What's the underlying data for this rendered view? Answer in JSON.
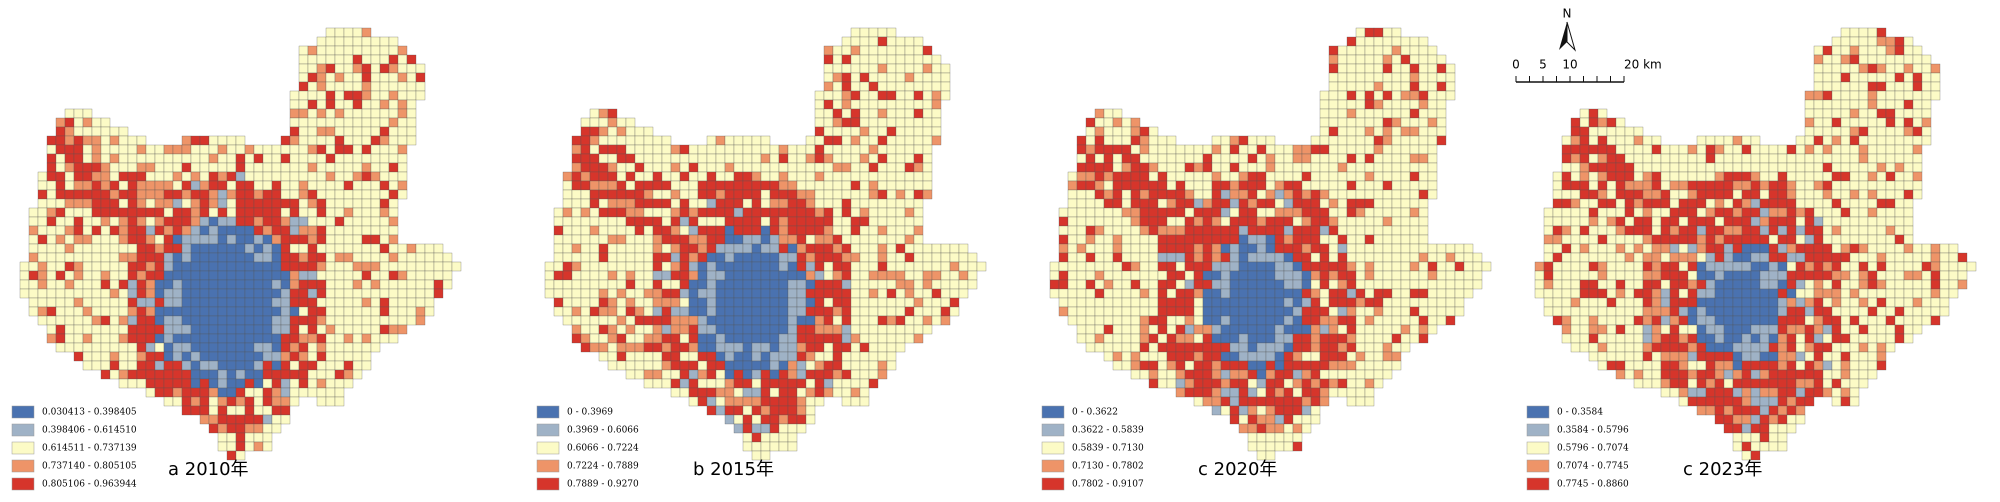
{
  "panels": [
    {
      "caption": "a 2010年",
      "legend": [
        {
          "label": "0.030413 - 0.398405",
          "color": "#4a72b0"
        },
        {
          "label": "0.398406 - 0.614510",
          "color": "#9fb2c6"
        },
        {
          "label": "0.614511 - 0.737139",
          "color": "#fcfbc6"
        },
        {
          "label": "0.737140 - 0.805105",
          "color": "#ee9468"
        },
        {
          "label": "0.805106 - 0.963944",
          "color": "#d6352b"
        }
      ]
    },
    {
      "caption": "b 2015年",
      "legend": [
        {
          "label": "0 - 0.3969",
          "color": "#4a72b0"
        },
        {
          "label": "0.3969 - 0.6066",
          "color": "#9fb2c6"
        },
        {
          "label": "0.6066 - 0.7224",
          "color": "#fcfbc6"
        },
        {
          "label": "0.7224 - 0.7889",
          "color": "#ee9468"
        },
        {
          "label": "0.7889 - 0.9270",
          "color": "#d6352b"
        }
      ]
    },
    {
      "caption": "c 2020年",
      "legend": [
        {
          "label": "0 - 0.3622",
          "color": "#4a72b0"
        },
        {
          "label": "0.3622 - 0.5839",
          "color": "#9fb2c6"
        },
        {
          "label": "0.5839 - 0.7130",
          "color": "#fcfbc6"
        },
        {
          "label": "0.7130 - 0.7802",
          "color": "#ee9468"
        },
        {
          "label": "0.7802 - 0.9107",
          "color": "#d6352b"
        }
      ]
    },
    {
      "caption": "c 2023年",
      "legend": [
        {
          "label": "0 - 0.3584",
          "color": "#4a72b0"
        },
        {
          "label": "0.3584 - 0.5796",
          "color": "#9fb2c6"
        },
        {
          "label": "0.5796 - 0.7074",
          "color": "#fcfbc6"
        },
        {
          "label": "0.7074 - 0.7745",
          "color": "#ee9468"
        },
        {
          "label": "0.7745 - 0.8860",
          "color": "#d6352b"
        }
      ]
    }
  ],
  "north_label": "N",
  "scale_bar": {
    "labels": [
      "0",
      "5",
      "10",
      "20 km"
    ]
  }
}
